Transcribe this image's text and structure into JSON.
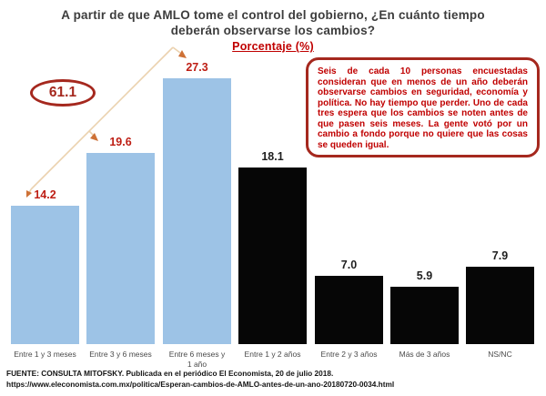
{
  "title": {
    "line1": "A partir de que AMLO tome el control del gobierno, ¿En cuánto tiempo",
    "line2": "deberán observarse los cambios?",
    "subtitle": "Porcentaje (%)"
  },
  "callout": {
    "text": "Seis de cada 10 personas encuestadas consideran que en menos de un año deberán observarse cambios en seguridad, economía y política. No hay tiempo que perder. Uno de cada tres espera que los cambios se noten antes de que pasen seis meses. La gente votó por un cambio a fondo porque no quiere que las cosas se queden igual."
  },
  "footer": {
    "source": "FUENTE: CONSULTA MITOFSKY. Publicada en el periódico El Economista, 20 de julio 2018.",
    "url": "https://www.eleconomista.com.mx/politica/Esperan-cambios-de-AMLO-antes-de-un-ano-20180720-0034.html"
  },
  "chart_data": {
    "type": "bar",
    "title": "A partir de que AMLO tome el control del gobierno, ¿En cuánto tiempo deberán observarse los cambios?",
    "ylabel": "Porcentaje (%)",
    "categories": [
      "Entre 1 y 3 meses",
      "Entre 3 y 6 meses",
      "Entre 6 meses y\n1 año",
      "Entre 1 y 2 años",
      "Entre 2 y 3 años",
      "Más de 3 años",
      "NS/NC"
    ],
    "values": [
      14.2,
      19.6,
      27.3,
      18.1,
      7.0,
      5.9,
      7.9
    ],
    "value_labels": [
      "14.2",
      "19.6",
      "27.3",
      "18.1",
      "7.0",
      "5.9",
      "7.9"
    ],
    "bar_colors": [
      "#9dc3e6",
      "#9dc3e6",
      "#9dc3e6",
      "#060606",
      "#060606",
      "#060606",
      "#060606"
    ],
    "value_label_colors": [
      "#be1e14",
      "#be1e14",
      "#be1e14",
      "#1f1f1f",
      "#1f1f1f",
      "#1f1f1f",
      "#1f1f1f"
    ],
    "annotation_sum": "61.1",
    "ylim": [
      0,
      30
    ],
    "grid": false,
    "legend": "none",
    "colors": {
      "highlight_blue": "#9dc3e6",
      "bar_black": "#060606",
      "accent_red": "#c00000",
      "dark_red": "#a5281e",
      "arrow_line": "#ebd2af",
      "arrow_head": "#ce7136",
      "title_gray": "#3d3d3d"
    }
  }
}
